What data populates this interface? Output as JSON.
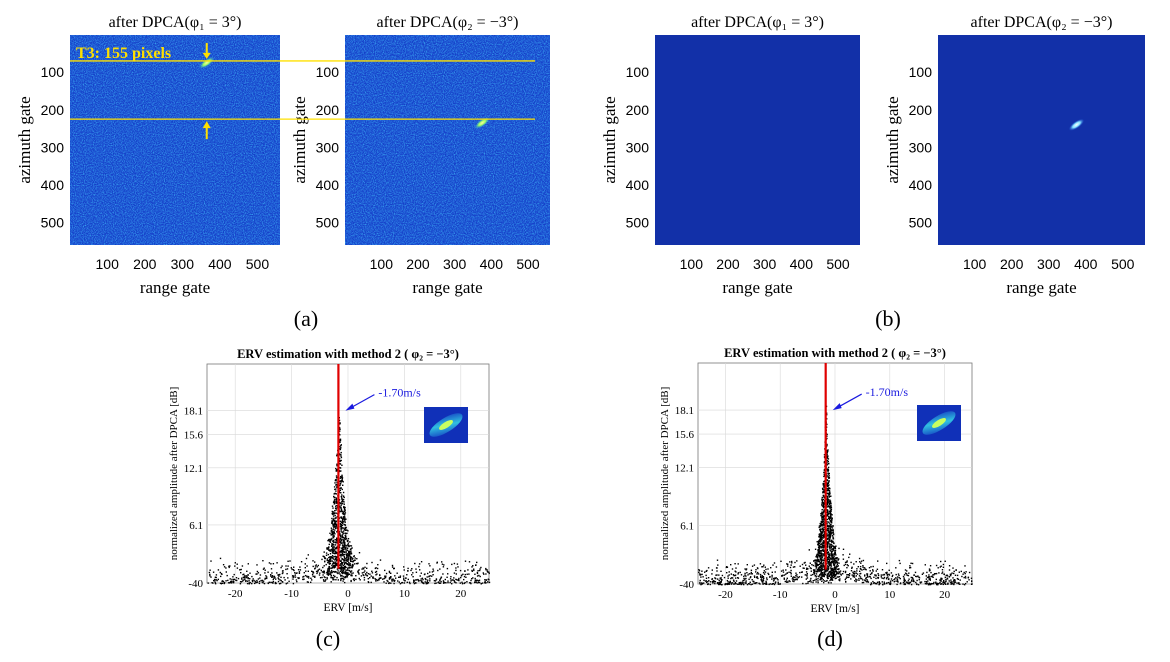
{
  "panels": {
    "a": {
      "label": "(a)",
      "title_left": "after DPCA(φ₁ = 3°)",
      "title_right": "after DPCA(φ₂ = −3°)",
      "annotation": "T3: 155 pixels"
    },
    "b": {
      "label": "(b)",
      "title_left": "after DPCA(φ₁ = 3°)",
      "title_right": "after DPCA(φ₂ = −3°)"
    },
    "c": {
      "label": "(c)",
      "title": "ERV estimation with method 2  ( φ₂ = −3°)",
      "annotation": "-1.70m/s"
    },
    "d": {
      "label": "(d)",
      "title": "ERV estimation with method 2  ( φ₂ = −3°)",
      "annotation": "-1.70m/s"
    }
  },
  "colors": {
    "image_bg_noisy": "#1540c8",
    "image_bg_clean": "#1230a8",
    "target_hot": "#a8ff60",
    "yellow": "#ffe000",
    "red_line": "#e00000",
    "arrow_blue": "#1a1adf",
    "points": "#000000"
  },
  "chart_data": [
    {
      "type": "heatmap",
      "panel": "a-left",
      "title": "after DPCA(φ₁ = 3°)",
      "xlabel": "range gate",
      "ylabel": "azimuth gate",
      "xlim": [
        1,
        560
      ],
      "ylim": [
        1,
        560
      ],
      "xticks": [
        100,
        200,
        300,
        400,
        500
      ],
      "yticks": [
        100,
        200,
        300,
        400,
        500
      ],
      "xticklabels": [
        "100",
        "200",
        "300",
        "400",
        "500"
      ],
      "yticklabels": [
        "100",
        "200",
        "300",
        "400",
        "500"
      ],
      "target": {
        "range": 365,
        "azimuth": 75
      },
      "guide_lines_azimuth": [
        70,
        225
      ]
    },
    {
      "type": "heatmap",
      "panel": "a-right",
      "title": "after DPCA(φ₂ = −3°)",
      "xlabel": "range gate",
      "ylabel": "azimuth gate",
      "xlim": [
        1,
        560
      ],
      "ylim": [
        1,
        560
      ],
      "xticks": [
        100,
        200,
        300,
        400,
        500
      ],
      "yticks": [
        100,
        200,
        300,
        400,
        500
      ],
      "xticklabels": [
        "100",
        "200",
        "300",
        "400",
        "500"
      ],
      "yticklabels": [
        "100",
        "200",
        "300",
        "400",
        "500"
      ],
      "target": {
        "range": 375,
        "azimuth": 235
      }
    },
    {
      "type": "heatmap",
      "panel": "b-left",
      "title": "after DPCA(φ₁ = 3°)",
      "xlabel": "range gate",
      "ylabel": "azimuth gate",
      "xlim": [
        1,
        560
      ],
      "ylim": [
        1,
        560
      ],
      "xticks": [
        100,
        200,
        300,
        400,
        500
      ],
      "yticks": [
        100,
        200,
        300,
        400,
        500
      ],
      "xticklabels": [
        "100",
        "200",
        "300",
        "400",
        "500"
      ],
      "yticklabels": [
        "100",
        "200",
        "300",
        "400",
        "500"
      ]
    },
    {
      "type": "heatmap",
      "panel": "b-right",
      "title": "after DPCA(φ₂ = −3°)",
      "xlabel": "range gate",
      "ylabel": "azimuth gate",
      "xlim": [
        1,
        560
      ],
      "ylim": [
        1,
        560
      ],
      "xticks": [
        100,
        200,
        300,
        400,
        500
      ],
      "yticks": [
        100,
        200,
        300,
        400,
        500
      ],
      "xticklabels": [
        "100",
        "200",
        "300",
        "400",
        "500"
      ],
      "yticklabels": [
        "100",
        "200",
        "300",
        "400",
        "500"
      ],
      "target": {
        "range": 375,
        "azimuth": 240
      }
    },
    {
      "type": "scatter",
      "panel": "c",
      "title": "ERV estimation with method 2  ( φ₂ = −3°)",
      "xlabel": "ERV [m/s]",
      "ylabel": "normalized amplitude after DPCA [dB]",
      "xlim": [
        -25,
        25
      ],
      "ylim": [
        0,
        23
      ],
      "xticks": [
        -20,
        -10,
        0,
        10,
        20
      ],
      "xticklabels": [
        "-20",
        "-10",
        "0",
        "10",
        "20"
      ],
      "yticks": [
        0,
        6.1,
        12.1,
        15.6,
        18.1
      ],
      "yticklabels": [
        "-40",
        "6.1",
        "12.1",
        "15.6",
        "18.1"
      ],
      "peak_erv": -1.7,
      "peak_label": "-1.70m/s",
      "n_points": 1600,
      "spread": 2.2,
      "seed": 7
    },
    {
      "type": "scatter",
      "panel": "d",
      "title": "ERV estimation with method 2  ( φ₂ = −3°)",
      "xlabel": "ERV [m/s]",
      "ylabel": "normalized amplitude after DPCA [dB]",
      "xlim": [
        -25,
        25
      ],
      "ylim": [
        0,
        23
      ],
      "xticks": [
        -20,
        -10,
        0,
        10,
        20
      ],
      "xticklabels": [
        "-20",
        "-10",
        "0",
        "10",
        "20"
      ],
      "yticks": [
        0,
        6.1,
        12.1,
        15.6,
        18.1
      ],
      "yticklabels": [
        "-40",
        "6.1",
        "12.1",
        "15.6",
        "18.1"
      ],
      "peak_erv": -1.7,
      "peak_label": "-1.70m/s",
      "n_points": 2000,
      "spread": 1.8,
      "seed": 13
    }
  ]
}
